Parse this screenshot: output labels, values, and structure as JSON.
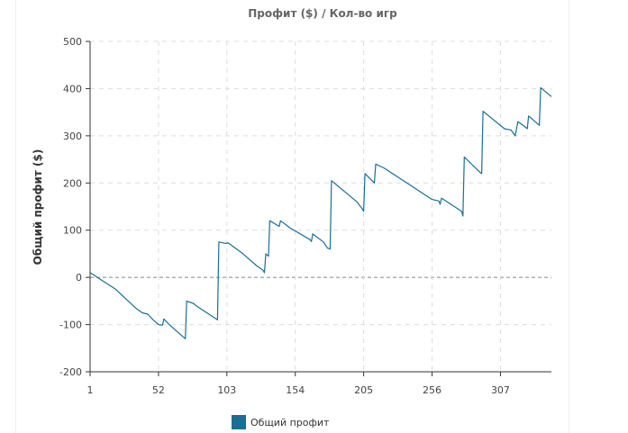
{
  "chart_data": {
    "type": "line",
    "title": "Профит ($) / Кол-во игр",
    "xlabel": "",
    "ylabel": "Общий профит ($)",
    "xlim": [
      1,
      345
    ],
    "ylim": [
      -200,
      500
    ],
    "x_ticks": [
      1,
      52,
      103,
      154,
      205,
      256,
      307
    ],
    "y_ticks": [
      -200,
      -100,
      0,
      100,
      200,
      300,
      400,
      500
    ],
    "grid": true,
    "legend_position": "bottom",
    "series": [
      {
        "name": "Общий профит",
        "color": "#1a6e94",
        "points": [
          [
            1,
            10
          ],
          [
            20,
            -25
          ],
          [
            35,
            -65
          ],
          [
            40,
            -75
          ],
          [
            44,
            -78
          ],
          [
            48,
            -90
          ],
          [
            52,
            -100
          ],
          [
            55,
            -101
          ],
          [
            56,
            -88
          ],
          [
            60,
            -100
          ],
          [
            72,
            -130
          ],
          [
            73,
            -50
          ],
          [
            78,
            -55
          ],
          [
            80,
            -60
          ],
          [
            95,
            -88
          ],
          [
            96,
            -90
          ],
          [
            97,
            75
          ],
          [
            102,
            72
          ],
          [
            104,
            73
          ],
          [
            115,
            50
          ],
          [
            125,
            25
          ],
          [
            130,
            15
          ],
          [
            131,
            10
          ],
          [
            132,
            50
          ],
          [
            134,
            45
          ],
          [
            135,
            120
          ],
          [
            142,
            108
          ],
          [
            143,
            120
          ],
          [
            150,
            105
          ],
          [
            165,
            80
          ],
          [
            166,
            76
          ],
          [
            167,
            92
          ],
          [
            175,
            75
          ],
          [
            178,
            62
          ],
          [
            180,
            60
          ],
          [
            181,
            205
          ],
          [
            200,
            160
          ],
          [
            204,
            145
          ],
          [
            205,
            140
          ],
          [
            206,
            220
          ],
          [
            213,
            200
          ],
          [
            214,
            240
          ],
          [
            220,
            232
          ],
          [
            240,
            195
          ],
          [
            256,
            165
          ],
          [
            261,
            162
          ],
          [
            262,
            155
          ],
          [
            263,
            168
          ],
          [
            278,
            140
          ],
          [
            279,
            130
          ],
          [
            280,
            255
          ],
          [
            292,
            222
          ],
          [
            293,
            220
          ],
          [
            294,
            352
          ],
          [
            310,
            315
          ],
          [
            315,
            312
          ],
          [
            318,
            300
          ],
          [
            320,
            330
          ],
          [
            325,
            320
          ],
          [
            327,
            315
          ],
          [
            328,
            342
          ],
          [
            335,
            325
          ],
          [
            336,
            322
          ],
          [
            337,
            402
          ],
          [
            345,
            383
          ]
        ]
      }
    ]
  }
}
